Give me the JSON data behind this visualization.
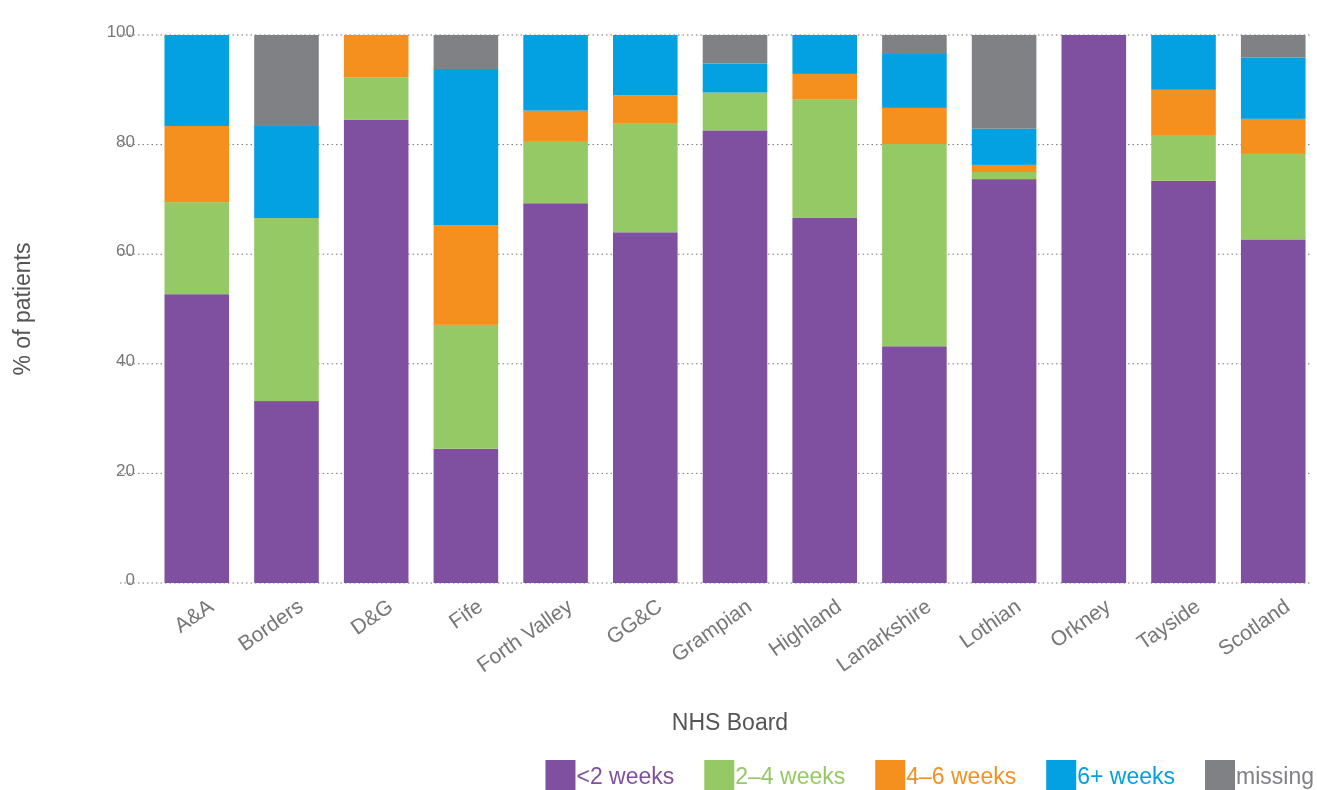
{
  "chart_data": {
    "type": "bar",
    "stacked": true,
    "xlabel": "NHS Board",
    "ylabel": "% of patients",
    "categories": [
      "A&A",
      "Borders",
      "D&G",
      "Fife",
      "Forth Valley",
      "GG&C",
      "Grampian",
      "Highland",
      "Lanarkshire",
      "Lothian",
      "Orkney",
      "Tayside",
      "Scotland"
    ],
    "series": [
      {
        "name": "<2 weeks",
        "color": "#7f509f",
        "values": [
          52.7,
          33.2,
          84.5,
          24.5,
          69.3,
          64.0,
          82.6,
          66.7,
          43.2,
          73.7,
          100,
          73.4,
          62.7
        ]
      },
      {
        "name": "2–4 weeks",
        "color": "#95c965",
        "values": [
          16.8,
          33.4,
          7.8,
          22.6,
          11.2,
          19.8,
          6.9,
          21.5,
          36.9,
          1.3,
          0,
          8.2,
          15.6
        ]
      },
      {
        "name": "4–6 weeks",
        "color": "#f5901e",
        "values": [
          13.9,
          0,
          7.7,
          18.2,
          5.7,
          5.2,
          0,
          4.7,
          6.6,
          1.3,
          0,
          8.4,
          6.4
        ]
      },
      {
        "name": "6+ weeks",
        "color": "#03a0e2",
        "values": [
          16.6,
          16.8,
          0,
          28.5,
          13.8,
          11.0,
          5.3,
          7.1,
          10.0,
          6.6,
          0,
          10.0,
          11.2
        ]
      },
      {
        "name": "missing",
        "color": "#808184",
        "values": [
          0,
          16.6,
          0,
          6.2,
          0,
          0,
          5.2,
          0,
          3.3,
          17.1,
          0,
          0,
          4.1
        ]
      }
    ],
    "ylim": [
      0,
      100
    ],
    "yticks": [
      0,
      20,
      40,
      60,
      80,
      100
    ],
    "grid": "y",
    "legend": "bottom right"
  }
}
